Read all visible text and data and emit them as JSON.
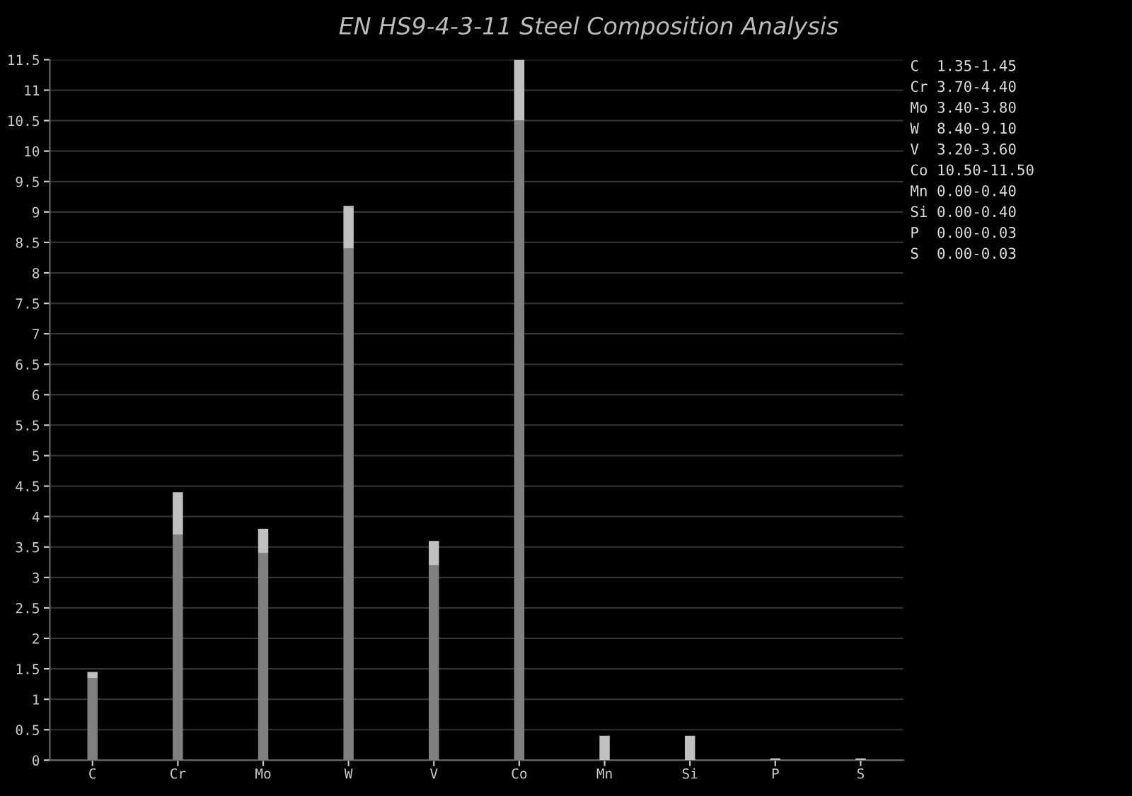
{
  "chart_data": {
    "type": "bar",
    "title": "EN HS9-4-3-11 Steel Composition Analysis",
    "stacked": true,
    "categories": [
      "C",
      "Cr",
      "Mo",
      "W",
      "V",
      "Co",
      "Mn",
      "Si",
      "P",
      "S"
    ],
    "series": [
      {
        "color": "#808080",
        "values": [
          1.35,
          3.7,
          3.4,
          8.4,
          3.2,
          10.5,
          0,
          0,
          0,
          0
        ]
      },
      {
        "color": "#c0c0c0",
        "values": [
          0.1,
          0.7,
          0.4,
          0.7,
          0.4,
          1.0,
          0.4,
          0.4,
          0.03,
          0.03
        ]
      }
    ],
    "ylim": [
      0,
      11.5
    ],
    "yticks": [
      0,
      0.5,
      1,
      1.5,
      2,
      2.5,
      3,
      3.5,
      4,
      4.5,
      5,
      5.5,
      6,
      6.5,
      7,
      7.5,
      8,
      8.5,
      9,
      9.5,
      10,
      10.5,
      11,
      11.5
    ],
    "grid": "y",
    "annotations": [
      "C  1.35-1.45",
      "Cr 3.70-4.40",
      "Mo 3.40-3.80",
      "W  8.40-9.10",
      "V  3.20-3.60",
      "Co 10.50-11.50",
      "Mn 0.00-0.40",
      "Si 0.00-0.40",
      "P  0.00-0.03",
      "S  0.00-0.03"
    ]
  }
}
